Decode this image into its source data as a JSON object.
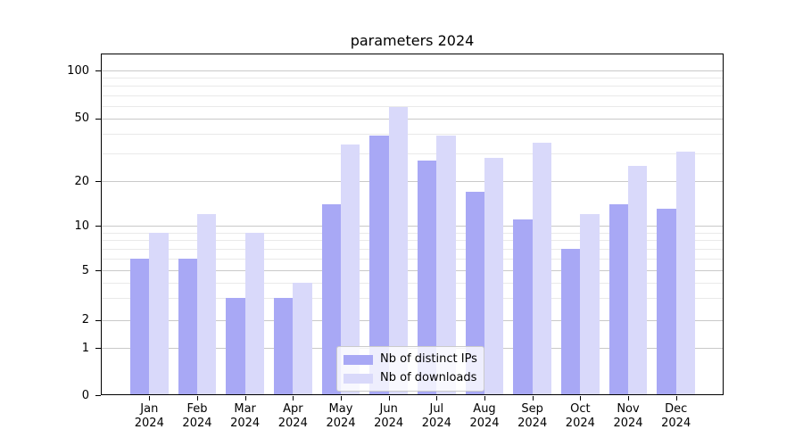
{
  "chart_data": {
    "type": "bar",
    "title": "parameters 2024",
    "categories": [
      "Jan 2024",
      "Feb 2024",
      "Mar 2024",
      "Apr 2024",
      "May 2024",
      "Jun 2024",
      "Jul 2024",
      "Aug 2024",
      "Sep 2024",
      "Oct 2024",
      "Nov 2024",
      "Dec 2024"
    ],
    "months": [
      "Jan",
      "Feb",
      "Mar",
      "Apr",
      "May",
      "Jun",
      "Jul",
      "Aug",
      "Sep",
      "Oct",
      "Nov",
      "Dec"
    ],
    "year": "2024",
    "series": [
      {
        "name": "Nb of distinct IPs",
        "color": "#a8a8f5",
        "values": [
          6,
          6,
          3,
          3,
          14,
          39,
          27,
          17,
          11,
          7,
          14,
          13
        ]
      },
      {
        "name": "Nb of downloads",
        "color": "#d9d9fa",
        "values": [
          9,
          12,
          9,
          4,
          34,
          59,
          39,
          28,
          35,
          12,
          25,
          31
        ]
      }
    ],
    "xlabel": "",
    "ylabel": "",
    "yscale": "log-like (symlog, linear below 1)",
    "ylim": [
      0,
      130
    ],
    "y_major_ticks": [
      100,
      50,
      20,
      10,
      5,
      2,
      1,
      0
    ],
    "y_minor_ticks": [
      3,
      4,
      6,
      7,
      8,
      9,
      30,
      40,
      60,
      70,
      80,
      90
    ],
    "grid": true,
    "legend_position": "lower center",
    "grid_major_color": "#c9c9c9",
    "grid_minor_color": "#e9e9e9"
  }
}
